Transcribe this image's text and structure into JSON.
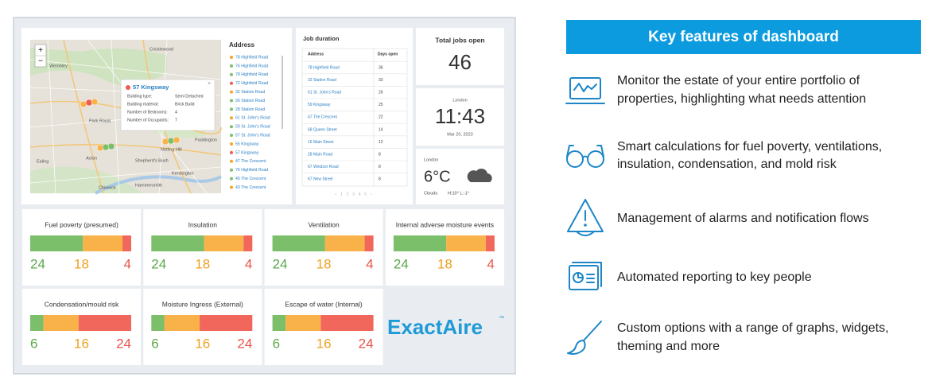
{
  "dashboard": {
    "map": {
      "zoom_in": "+",
      "zoom_out": "−",
      "places": [
        "Wembley",
        "Cricklewood",
        "Park Royal",
        "Ealing",
        "Acton",
        "Shepherd's Bush",
        "Notting Hill",
        "Paddington",
        "Kensington",
        "Hammersmith",
        "Chiswick"
      ],
      "popup": {
        "title": "57 Kingsway",
        "close": "×",
        "fields": [
          {
            "label": "Building type:",
            "value": "Semi Detached"
          },
          {
            "label": "Building material:",
            "value": "Brick Build"
          },
          {
            "label": "Number of Bedrooms:",
            "value": "4"
          },
          {
            "label": "Number of Occupants:",
            "value": "7"
          }
        ]
      }
    },
    "address_list": {
      "title": "Address",
      "items": [
        {
          "name": "78 Highfield Road",
          "color": "#f5a623"
        },
        {
          "name": "76 Highfield Road",
          "color": "#7cbf6b"
        },
        {
          "name": "78 Highfield Road",
          "color": "#7cbf6b"
        },
        {
          "name": "72 Highfield Road",
          "color": "#ee5b4f"
        },
        {
          "name": "32 Station Road",
          "color": "#f5a623"
        },
        {
          "name": "30 Station Road",
          "color": "#7cbf6b"
        },
        {
          "name": "28 Station Road",
          "color": "#7cbf6b"
        },
        {
          "name": "61 St. John's Road",
          "color": "#f5a623"
        },
        {
          "name": "59 St. John's Road",
          "color": "#7cbf6b"
        },
        {
          "name": "57 St. John's Road",
          "color": "#7cbf6b"
        },
        {
          "name": "55 Kingsway",
          "color": "#f5a623"
        },
        {
          "name": "57 Kingsway",
          "color": "#ee5b4f"
        },
        {
          "name": "47 The Crescent",
          "color": "#f5a623"
        },
        {
          "name": "76 Highfield Road",
          "color": "#7cbf6b"
        },
        {
          "name": "45 The Crescent",
          "color": "#7cbf6b"
        },
        {
          "name": "43 The Crescent",
          "color": "#f5a623"
        }
      ]
    },
    "job_duration": {
      "title": "Job duration",
      "columns": [
        "Address",
        "Days open"
      ],
      "rows": [
        [
          "78 Highfield Road",
          36
        ],
        [
          "32 Station Road",
          33
        ],
        [
          "61 St. John's Road",
          26
        ],
        [
          "59 Kingsway",
          25
        ],
        [
          "47 The Crescent",
          22
        ],
        [
          "68 Queen Street",
          14
        ],
        [
          "16 Main Street",
          12
        ],
        [
          "28 Main Road",
          8
        ],
        [
          "67 Windsor Road",
          8
        ],
        [
          "67 New Street",
          8
        ]
      ],
      "pagination": [
        "‹",
        "1",
        "2",
        "3",
        "4",
        "5",
        "›"
      ]
    },
    "total_jobs": {
      "title": "Total jobs open",
      "value": 46
    },
    "clock": {
      "city": "London",
      "time": "11:43",
      "date": "Mar 20, 2023"
    },
    "weather": {
      "city": "London",
      "temperature": "6°C",
      "condition": "Clouds",
      "range": "H:10° L:-1°"
    },
    "segment_colors": [
      "#7cbf6b",
      "#f9b24a",
      "#f2675c"
    ],
    "number_colors": [
      "#5aa84a",
      "#f0a020",
      "#e8534a"
    ],
    "gauges": [
      {
        "title": "Fuel poverty (presumed)",
        "values": [
          24,
          18,
          4
        ]
      },
      {
        "title": "Insulation",
        "values": [
          24,
          18,
          4
        ]
      },
      {
        "title": "Ventilation",
        "values": [
          24,
          18,
          4
        ]
      },
      {
        "title": "Internal adverse moisture events",
        "values": [
          24,
          18,
          4
        ]
      },
      {
        "title": "Condensation/mould risk",
        "values": [
          6,
          16,
          24
        ]
      },
      {
        "title": "Moisture Ingress (External)",
        "values": [
          6,
          16,
          24
        ]
      },
      {
        "title": "Escape of water (Internal)",
        "values": [
          6,
          16,
          24
        ]
      }
    ],
    "logo": {
      "text": "ExactAire",
      "mark": "™"
    }
  },
  "features": {
    "title": "Key features of dashboard",
    "items": [
      {
        "lines": [
          "Monitor the estate of your entire portfolio of",
          "properties, highlighting what needs attention"
        ]
      },
      {
        "lines": [
          "Smart calculations for fuel poverty, ventilations,",
          "insulation, condensation, and mold risk"
        ]
      },
      {
        "lines": [
          "Management of alarms and notification flows"
        ]
      },
      {
        "lines": [
          "Automated reporting to key people"
        ]
      },
      {
        "lines": [
          "Custom options with a range of graphs, widgets,",
          "theming and more"
        ]
      }
    ]
  }
}
